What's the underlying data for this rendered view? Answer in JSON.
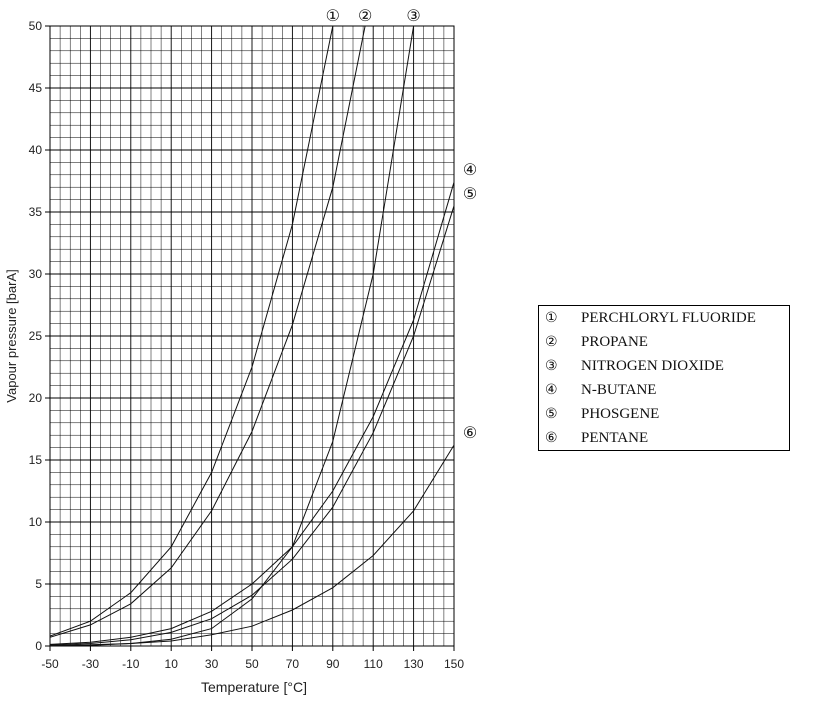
{
  "chart_data": {
    "type": "line",
    "title": "",
    "xlabel": "Temperature [°C]",
    "ylabel": "Vapour pressure [barA]",
    "xlim": [
      -50,
      150
    ],
    "ylim": [
      0,
      50
    ],
    "x_ticks": [
      -50,
      -30,
      -10,
      10,
      30,
      50,
      70,
      90,
      110,
      130,
      150
    ],
    "y_ticks": [
      0,
      5,
      10,
      15,
      20,
      25,
      30,
      35,
      40,
      45,
      50
    ],
    "grid": true,
    "series": [
      {
        "marker": "①",
        "name": "PERCHLORYL FLUORIDE",
        "points": [
          [
            -50,
            0.8
          ],
          [
            -30,
            2.0
          ],
          [
            -10,
            4.3
          ],
          [
            10,
            8.0
          ],
          [
            30,
            14.0
          ],
          [
            50,
            22.5
          ],
          [
            70,
            34.0
          ],
          [
            90,
            50.0
          ]
        ]
      },
      {
        "marker": "②",
        "name": "PROPANE",
        "points": [
          [
            -50,
            0.7
          ],
          [
            -30,
            1.7
          ],
          [
            -10,
            3.4
          ],
          [
            10,
            6.3
          ],
          [
            30,
            10.9
          ],
          [
            50,
            17.3
          ],
          [
            70,
            25.9
          ],
          [
            90,
            37.0
          ],
          [
            106,
            50.0
          ]
        ]
      },
      {
        "marker": "③",
        "name": "NITROGEN DIOXIDE",
        "points": [
          [
            -50,
            0.02
          ],
          [
            -30,
            0.06
          ],
          [
            -10,
            0.2
          ],
          [
            10,
            0.55
          ],
          [
            30,
            1.4
          ],
          [
            50,
            3.8
          ],
          [
            70,
            8.0
          ],
          [
            90,
            16.5
          ],
          [
            110,
            30.0
          ],
          [
            130,
            50.0
          ]
        ]
      },
      {
        "marker": "④",
        "name": "N-BUTANE",
        "points": [
          [
            -50,
            0.13
          ],
          [
            -30,
            0.3
          ],
          [
            -10,
            0.7
          ],
          [
            10,
            1.4
          ],
          [
            30,
            2.8
          ],
          [
            50,
            5.0
          ],
          [
            70,
            8.0
          ],
          [
            90,
            12.5
          ],
          [
            110,
            18.5
          ],
          [
            130,
            26.3
          ],
          [
            150,
            37.4
          ]
        ]
      },
      {
        "marker": "⑤",
        "name": "PHOSGENE",
        "points": [
          [
            -50,
            0.08
          ],
          [
            -30,
            0.2
          ],
          [
            -10,
            0.5
          ],
          [
            10,
            1.1
          ],
          [
            30,
            2.2
          ],
          [
            50,
            4.1
          ],
          [
            70,
            7.0
          ],
          [
            90,
            11.2
          ],
          [
            110,
            17.2
          ],
          [
            130,
            25.0
          ],
          [
            150,
            35.5
          ]
        ]
      },
      {
        "marker": "⑥",
        "name": "PENTANE",
        "points": [
          [
            -50,
            0.03
          ],
          [
            -30,
            0.1
          ],
          [
            -10,
            0.2
          ],
          [
            10,
            0.4
          ],
          [
            30,
            0.9
          ],
          [
            50,
            1.6
          ],
          [
            70,
            2.9
          ],
          [
            90,
            4.7
          ],
          [
            110,
            7.3
          ],
          [
            130,
            10.9
          ],
          [
            150,
            16.2
          ]
        ]
      }
    ]
  }
}
